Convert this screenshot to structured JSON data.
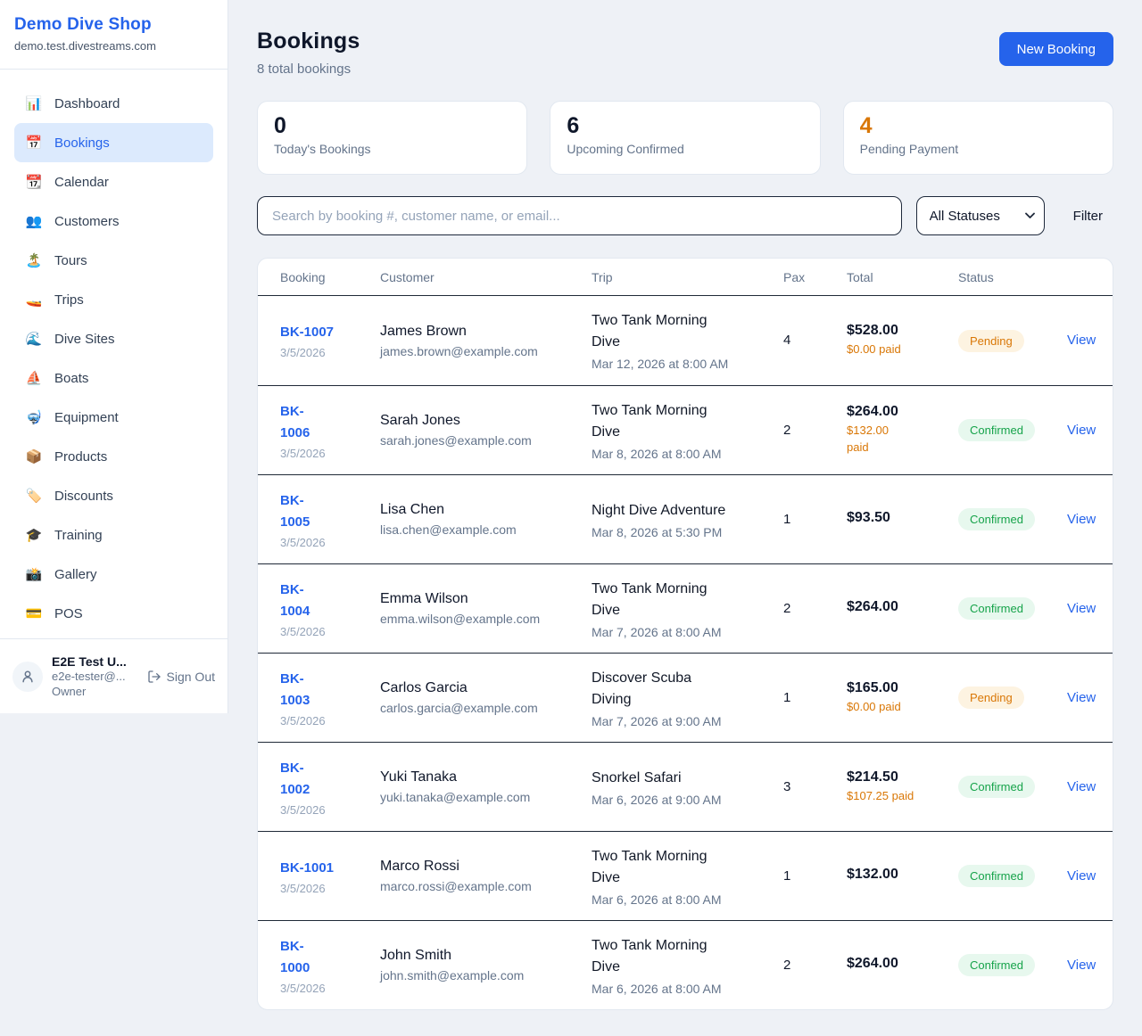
{
  "colors": {
    "accent": "#2563eb",
    "warning": "#d97706",
    "status_colors": {
      "Pending": {
        "bg": "#fdf3e1",
        "text": "#d97706"
      },
      "Confirmed": {
        "bg": "#e7f8ee",
        "text": "#16a34a"
      }
    }
  },
  "sidebar": {
    "brand": "Demo Dive Shop",
    "domain": "demo.test.divestreams.com",
    "items": [
      {
        "icon": "📊",
        "label": "Dashboard",
        "active": false
      },
      {
        "icon": "📅",
        "label": "Bookings",
        "active": true
      },
      {
        "icon": "📆",
        "label": "Calendar",
        "active": false
      },
      {
        "icon": "👥",
        "label": "Customers",
        "active": false
      },
      {
        "icon": "🏝️",
        "label": "Tours",
        "active": false
      },
      {
        "icon": "🚤",
        "label": "Trips",
        "active": false
      },
      {
        "icon": "🌊",
        "label": "Dive Sites",
        "active": false
      },
      {
        "icon": "⛵",
        "label": "Boats",
        "active": false
      },
      {
        "icon": "🤿",
        "label": "Equipment",
        "active": false
      },
      {
        "icon": "📦",
        "label": "Products",
        "active": false
      },
      {
        "icon": "🏷️",
        "label": "Discounts",
        "active": false
      },
      {
        "icon": "🎓",
        "label": "Training",
        "active": false
      },
      {
        "icon": "📸",
        "label": "Gallery",
        "active": false
      },
      {
        "icon": "💳",
        "label": "POS",
        "active": false
      }
    ],
    "user": {
      "name": "E2E Test U...",
      "email": "e2e-tester@...",
      "role": "Owner",
      "sign_out_label": "Sign Out"
    }
  },
  "header": {
    "title": "Bookings",
    "subtitle": "8 total bookings",
    "new_booking_label": "New Booking"
  },
  "stats": [
    {
      "value": "0",
      "label": "Today's Bookings",
      "color": "#0f172a"
    },
    {
      "value": "6",
      "label": "Upcoming Confirmed",
      "color": "#0f172a"
    },
    {
      "value": "4",
      "label": "Pending Payment",
      "color": "#d97706"
    }
  ],
  "filters": {
    "search_placeholder": "Search by booking #, customer name, or email...",
    "status_selected": "All Statuses",
    "filter_label": "Filter"
  },
  "table": {
    "columns": [
      "Booking",
      "Customer",
      "Trip",
      "Pax",
      "Total",
      "Status"
    ],
    "view_label": "View",
    "rows": [
      {
        "booking_lines": [
          "BK-1007"
        ],
        "date": "3/5/2026",
        "customer": "James Brown",
        "email": "james.brown@example.com",
        "trip": "Two Tank Morning Dive",
        "trip_time": "Mar 12, 2026 at 8:00 AM",
        "pax": "4",
        "total": "$528.00",
        "paid_lines": [
          "$0.00 paid"
        ],
        "status": "Pending"
      },
      {
        "booking_lines": [
          "BK-",
          "1006"
        ],
        "date": "3/5/2026",
        "customer": "Sarah Jones",
        "email": "sarah.jones@example.com",
        "trip": "Two Tank Morning Dive",
        "trip_time": "Mar 8, 2026 at 8:00 AM",
        "pax": "2",
        "total": "$264.00",
        "paid_lines": [
          "$132.00",
          "paid"
        ],
        "status": "Confirmed"
      },
      {
        "booking_lines": [
          "BK-",
          "1005"
        ],
        "date": "3/5/2026",
        "customer": "Lisa Chen",
        "email": "lisa.chen@example.com",
        "trip": "Night Dive Adventure",
        "trip_time": "Mar 8, 2026 at 5:30 PM",
        "pax": "1",
        "total": "$93.50",
        "paid_lines": [],
        "status": "Confirmed"
      },
      {
        "booking_lines": [
          "BK-",
          "1004"
        ],
        "date": "3/5/2026",
        "customer": "Emma Wilson",
        "email": "emma.wilson@example.com",
        "trip": "Two Tank Morning Dive",
        "trip_time": "Mar 7, 2026 at 8:00 AM",
        "pax": "2",
        "total": "$264.00",
        "paid_lines": [],
        "status": "Confirmed"
      },
      {
        "booking_lines": [
          "BK-",
          "1003"
        ],
        "date": "3/5/2026",
        "customer": "Carlos Garcia",
        "email": "carlos.garcia@example.com",
        "trip": "Discover Scuba Diving",
        "trip_time": "Mar 7, 2026 at 9:00 AM",
        "pax": "1",
        "total": "$165.00",
        "paid_lines": [
          "$0.00 paid"
        ],
        "status": "Pending"
      },
      {
        "booking_lines": [
          "BK-",
          "1002"
        ],
        "date": "3/5/2026",
        "customer": "Yuki Tanaka",
        "email": "yuki.tanaka@example.com",
        "trip": "Snorkel Safari",
        "trip_time": "Mar 6, 2026 at 9:00 AM",
        "pax": "3",
        "total": "$214.50",
        "paid_lines": [
          "$107.25 paid"
        ],
        "status": "Confirmed"
      },
      {
        "booking_lines": [
          "BK-1001"
        ],
        "date": "3/5/2026",
        "customer": "Marco Rossi",
        "email": "marco.rossi@example.com",
        "trip": "Two Tank Morning Dive",
        "trip_time": "Mar 6, 2026 at 8:00 AM",
        "pax": "1",
        "total": "$132.00",
        "paid_lines": [],
        "status": "Confirmed"
      },
      {
        "booking_lines": [
          "BK-",
          "1000"
        ],
        "date": "3/5/2026",
        "customer": "John Smith",
        "email": "john.smith@example.com",
        "trip": "Two Tank Morning Dive",
        "trip_time": "Mar 6, 2026 at 8:00 AM",
        "pax": "2",
        "total": "$264.00",
        "paid_lines": [],
        "status": "Confirmed"
      }
    ]
  }
}
